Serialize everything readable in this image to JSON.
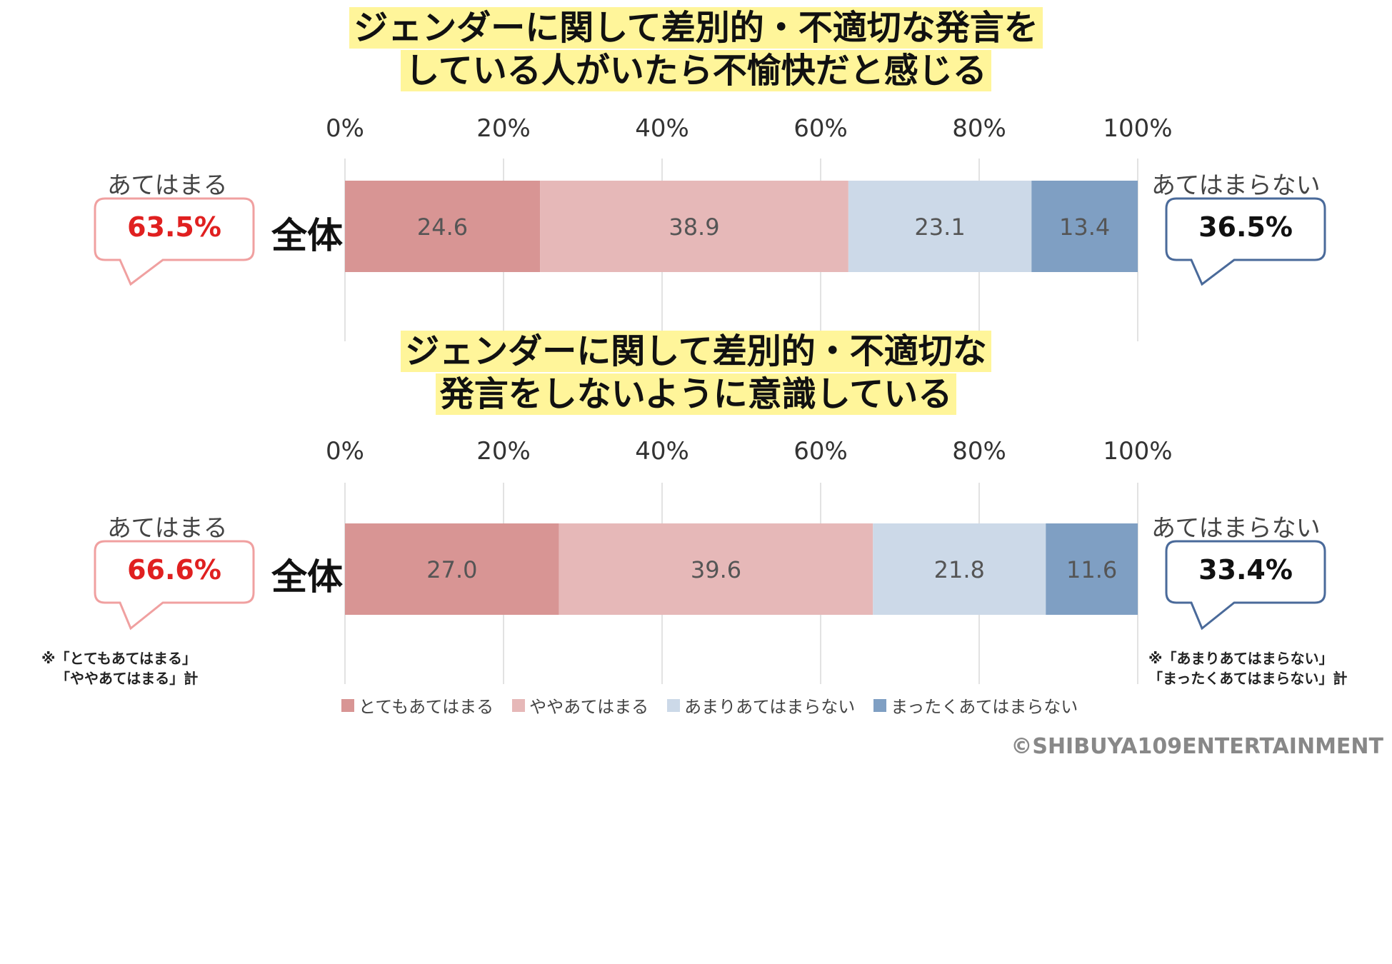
{
  "colors": {
    "title_highlight": "#fff59a",
    "agree_text": "#e02020",
    "disagree_text": "#111111",
    "agree_bubble_border": "#f0a0a0",
    "disagree_bubble_border": "#4a6a9a",
    "segments": [
      "#d89594",
      "#e6b8b8",
      "#ccd9e8",
      "#7f9fc3"
    ]
  },
  "legend": {
    "items": [
      "とてもあてはまる",
      "ややあてはまる",
      "あまりあてはまらない",
      "まったくあてはまらない"
    ]
  },
  "copyright": "©SHIBUYA109ENTERTAINMENT",
  "chart_data": [
    {
      "type": "bar",
      "orientation": "horizontal",
      "stacked": true,
      "title_lines": [
        "ジェンダーに関して差別的・不適切な発言を",
        "している人がいたら不愉快だと感じる"
      ],
      "tick_labels": [
        "0%",
        "20%",
        "40%",
        "60%",
        "80%",
        "100%"
      ],
      "xlim": [
        0,
        100
      ],
      "grid": true,
      "categories": [
        "全体"
      ],
      "series": [
        {
          "name": "とてもあてはまる",
          "values": [
            24.6
          ]
        },
        {
          "name": "ややあてはまる",
          "values": [
            38.9
          ]
        },
        {
          "name": "あまりあてはまらない",
          "values": [
            23.1
          ]
        },
        {
          "name": "まったくあてはまらない",
          "values": [
            13.4
          ]
        }
      ],
      "left_summary": {
        "label": "あてはまる",
        "value": "63.5%"
      },
      "right_summary": {
        "label": "あてはまらない",
        "value": "36.5%"
      }
    },
    {
      "type": "bar",
      "orientation": "horizontal",
      "stacked": true,
      "title_lines": [
        "ジェンダーに関して差別的・不適切な",
        "発言をしないように意識している"
      ],
      "tick_labels": [
        "0%",
        "20%",
        "40%",
        "60%",
        "80%",
        "100%"
      ],
      "xlim": [
        0,
        100
      ],
      "grid": true,
      "categories": [
        "全体"
      ],
      "series": [
        {
          "name": "とてもあてはまる",
          "values": [
            27.0
          ]
        },
        {
          "name": "ややあてはまる",
          "values": [
            39.6
          ]
        },
        {
          "name": "あまりあてはまらない",
          "values": [
            21.8
          ]
        },
        {
          "name": "まったくあてはまらない",
          "values": [
            11.6
          ]
        }
      ],
      "left_summary": {
        "label": "あてはまる",
        "value": "66.6%"
      },
      "right_summary": {
        "label": "あてはまらない",
        "value": "33.4%"
      }
    }
  ],
  "notes": {
    "left": [
      "※「とてもあてはまる」",
      "「ややあてはまる」計"
    ],
    "right": [
      "※「あまりあてはまらない」",
      "「まったくあてはまらない」計"
    ]
  }
}
